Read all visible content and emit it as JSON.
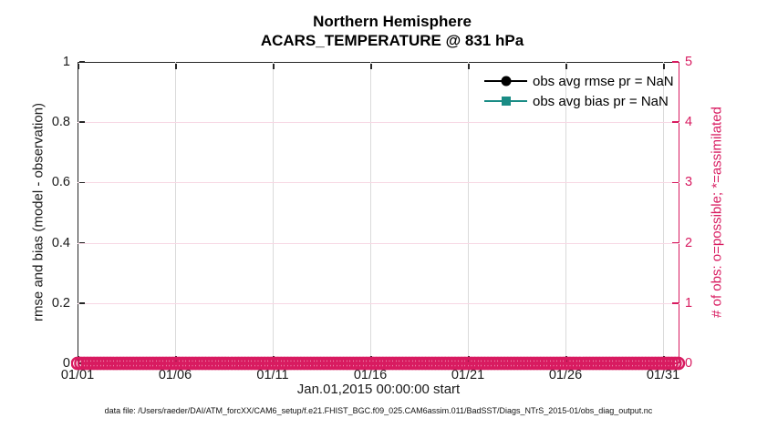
{
  "title": {
    "line1": "Northern Hemisphere",
    "line2": "ACARS_TEMPERATURE @ 831 hPa"
  },
  "legend": {
    "items": [
      {
        "label": "obs avg rmse pr = NaN",
        "color": "#000000",
        "marker": "circle"
      },
      {
        "label": "obs avg bias pr = NaN",
        "color": "#1a8c85",
        "marker": "square"
      }
    ],
    "position": "top-right inside plot, no box"
  },
  "footer": {
    "text": "data file: /Users/raeder/DAI/ATM_forcXX/CAM6_setup/f.e21.FHIST_BGC.f09_025.CAM6assim.011/BadSST/Diags_NTrS_2015-01/obs_diag_output.nc"
  },
  "colors": {
    "pink_accent": "#d81b60",
    "teal": "#1a8c85",
    "axis": "#262626",
    "grid_vertical": "#dadada",
    "grid_horizontal": "#f7d8e4"
  },
  "chart_data": {
    "type": "line",
    "title": "Northern Hemisphere ACARS_TEMPERATURE @ 831 hPa",
    "xlabel": "Jan.01,2015 00:00:00 start",
    "ylabel_left": "rmse and bias (model - observation)",
    "ylabel_right": "# of obs: o=possible; *=assimilated",
    "x_ticks": [
      "01/01",
      "01/06",
      "01/11",
      "01/16",
      "01/21",
      "01/26",
      "01/31"
    ],
    "y_left_ticks": [
      "0",
      "0.2",
      "0.4",
      "0.6",
      "0.8",
      "1"
    ],
    "y_right_ticks": [
      "0",
      "1",
      "2",
      "3",
      "4",
      "5"
    ],
    "ylim_left": [
      0,
      1
    ],
    "ylim_right": [
      0,
      5
    ],
    "xlim": [
      "01/01",
      "02/01"
    ],
    "grid": true,
    "legend_position": "top-right inside, no box",
    "series": [
      {
        "name": "obs avg rmse",
        "axis": "left",
        "color": "#000000",
        "marker": "o",
        "values": "NaN (no curve plotted)"
      },
      {
        "name": "obs avg bias",
        "axis": "left",
        "color": "#1a8c85",
        "marker": "s",
        "values": "NaN (no curve plotted)"
      },
      {
        "name": "# of obs possible",
        "axis": "right",
        "color": "#d81b60",
        "marker": "o",
        "constant_value": 0,
        "x_span": [
          "01/01",
          "02/01"
        ],
        "note": "dense row of hollow circle markers at y=0 spanning the full x range"
      }
    ]
  }
}
